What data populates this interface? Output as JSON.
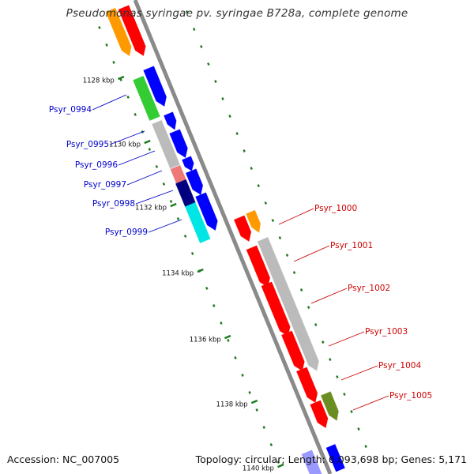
{
  "title": "Pseudomonas syringae pv. syringae B728a, complete genome",
  "footer": {
    "accession": "Accession: NC_007005",
    "summary": "Topology: circular; Length: 6,093,698 bp; Genes: 5,171"
  },
  "ticks": [
    "1128 kbp",
    "1130 kbp",
    "1132 kbp",
    "1134 kbp",
    "1136 kbp",
    "1138 kbp",
    "1140 kbp"
  ],
  "gene_labels_left": [
    "Psyr_0994",
    "Psyr_0995",
    "Psyr_0996",
    "Psyr_0997",
    "Psyr_0998",
    "Psyr_0999"
  ],
  "gene_labels_right": [
    "Psyr_1000",
    "Psyr_1001",
    "Psyr_1002",
    "Psyr_1003",
    "Psyr_1004",
    "Psyr_1005"
  ],
  "colors": {
    "backbone": "#8a8a8a",
    "tick": "#1a7a1a",
    "left_label": "#0000cc",
    "right_label": "#cc0000",
    "red": "#ff0000",
    "orange": "#ff9900",
    "blue": "#0000ff",
    "green": "#33cc33",
    "gray": "#bbbbbb",
    "pink": "#ee7777",
    "navy": "#000080",
    "cyan": "#00e5e5",
    "olive": "#6b8e23",
    "lavender": "#9999ff"
  }
}
